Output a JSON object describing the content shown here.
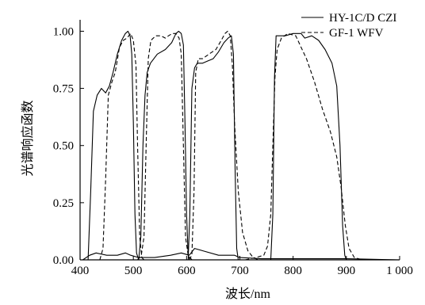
{
  "chart_data": {
    "type": "line",
    "xlabel": "波长/nm",
    "ylabel": "光谱响应函数",
    "xlim": [
      400,
      1000
    ],
    "ylim": [
      0,
      1.05
    ],
    "x_ticks": [
      400,
      500,
      600,
      700,
      800,
      900,
      1000
    ],
    "x_tick_labels": [
      "400",
      "500",
      "600",
      "700",
      "800",
      "900",
      "1 000"
    ],
    "y_ticks": [
      0,
      0.25,
      0.5,
      0.75,
      1.0
    ],
    "y_tick_labels": [
      "0.00",
      "0.25",
      "0.50",
      "0.75",
      "1.00"
    ],
    "grid": false,
    "legend_position": "top-right",
    "series": [
      {
        "name": "HY-1C/D CZI",
        "style": "solid",
        "color": "#000000",
        "bands": [
          [
            [
              405,
              0
            ],
            [
              418,
              0.02
            ],
            [
              430,
              0.03
            ],
            [
              450,
              0.02
            ],
            [
              470,
              0.02
            ],
            [
              485,
              0.03
            ],
            [
              495,
              0.02
            ],
            [
              510,
              0.01
            ],
            [
              540,
              0.01
            ],
            [
              570,
              0.02
            ],
            [
              590,
              0.03
            ],
            [
              605,
              0.02
            ],
            [
              615,
              0.05
            ],
            [
              630,
              0.04
            ],
            [
              660,
              0.02
            ],
            [
              690,
              0.02
            ],
            [
              700,
              0.01
            ],
            [
              740,
              0.005
            ],
            [
              800,
              0.005
            ],
            [
              900,
              0.005
            ],
            [
              1000,
              0
            ]
          ],
          [
            [
              415,
              0
            ],
            [
              420,
              0.3
            ],
            [
              425,
              0.65
            ],
            [
              432,
              0.72
            ],
            [
              440,
              0.75
            ],
            [
              448,
              0.73
            ],
            [
              455,
              0.76
            ],
            [
              462,
              0.82
            ],
            [
              470,
              0.9
            ],
            [
              478,
              0.96
            ],
            [
              485,
              0.99
            ],
            [
              490,
              1.0
            ],
            [
              494,
              0.98
            ],
            [
              497,
              0.9
            ],
            [
              500,
              0.6
            ],
            [
              503,
              0.2
            ],
            [
              506,
              0.03
            ],
            [
              510,
              0
            ]
          ],
          [
            [
              510,
              0
            ],
            [
              514,
              0.1
            ],
            [
              518,
              0.5
            ],
            [
              522,
              0.72
            ],
            [
              526,
              0.82
            ],
            [
              532,
              0.86
            ],
            [
              545,
              0.9
            ],
            [
              560,
              0.92
            ],
            [
              572,
              0.95
            ],
            [
              580,
              0.99
            ],
            [
              585,
              1.0
            ],
            [
              590,
              0.99
            ],
            [
              594,
              0.94
            ],
            [
              597,
              0.6
            ],
            [
              600,
              0.2
            ],
            [
              603,
              0.02
            ],
            [
              606,
              0
            ]
          ],
          [
            [
              603,
              0
            ],
            [
              606,
              0.2
            ],
            [
              610,
              0.75
            ],
            [
              615,
              0.84
            ],
            [
              620,
              0.86
            ],
            [
              630,
              0.86
            ],
            [
              640,
              0.87
            ],
            [
              650,
              0.88
            ],
            [
              660,
              0.91
            ],
            [
              670,
              0.95
            ],
            [
              678,
              0.97
            ],
            [
              684,
              0.98
            ],
            [
              688,
              0.9
            ],
            [
              691,
              0.4
            ],
            [
              694,
              0.05
            ],
            [
              697,
              0
            ]
          ],
          [
            [
              758,
              0
            ],
            [
              762,
              0.2
            ],
            [
              765,
              0.8
            ],
            [
              768,
              0.98
            ],
            [
              775,
              0.98
            ],
            [
              785,
              0.98
            ],
            [
              800,
              0.99
            ],
            [
              815,
              0.99
            ],
            [
              822,
              0.97
            ],
            [
              835,
              0.98
            ],
            [
              848,
              0.96
            ],
            [
              860,
              0.92
            ],
            [
              873,
              0.86
            ],
            [
              882,
              0.76
            ],
            [
              888,
              0.5
            ],
            [
              893,
              0.15
            ],
            [
              897,
              0.02
            ],
            [
              900,
              0
            ]
          ]
        ]
      },
      {
        "name": "GF-1 WFV",
        "style": "dashed",
        "color": "#000000",
        "bands": [
          [
            [
              437,
              0
            ],
            [
              443,
              0.05
            ],
            [
              448,
              0.35
            ],
            [
              453,
              0.72
            ],
            [
              460,
              0.78
            ],
            [
              466,
              0.82
            ],
            [
              474,
              0.93
            ],
            [
              481,
              0.96
            ],
            [
              488,
              0.97
            ],
            [
              495,
              0.99
            ],
            [
              500,
              0.96
            ],
            [
              505,
              0.85
            ],
            [
              508,
              0.5
            ],
            [
              512,
              0.1
            ],
            [
              516,
              0.01
            ],
            [
              520,
              0
            ]
          ],
          [
            [
              508,
              0
            ],
            [
              515,
              0.02
            ],
            [
              520,
              0.1
            ],
            [
              524,
              0.5
            ],
            [
              528,
              0.88
            ],
            [
              533,
              0.96
            ],
            [
              542,
              0.98
            ],
            [
              552,
              0.98
            ],
            [
              560,
              0.97
            ],
            [
              566,
              0.98
            ],
            [
              573,
              0.99
            ],
            [
              580,
              0.99
            ],
            [
              586,
              0.97
            ],
            [
              590,
              0.9
            ],
            [
              594,
              0.5
            ],
            [
              598,
              0.1
            ],
            [
              603,
              0.02
            ],
            [
              610,
              0
            ]
          ],
          [
            [
              605,
              0
            ],
            [
              610,
              0.02
            ],
            [
              614,
              0.3
            ],
            [
              617,
              0.82
            ],
            [
              622,
              0.88
            ],
            [
              630,
              0.88
            ],
            [
              642,
              0.9
            ],
            [
              655,
              0.92
            ],
            [
              665,
              0.96
            ],
            [
              672,
              0.99
            ],
            [
              677,
              1.0
            ],
            [
              682,
              0.98
            ],
            [
              686,
              0.85
            ],
            [
              690,
              0.6
            ],
            [
              697,
              0.3
            ],
            [
              705,
              0.12
            ],
            [
              715,
              0.04
            ],
            [
              725,
              0.01
            ],
            [
              735,
              0
            ]
          ],
          [
            [
              710,
              0
            ],
            [
              730,
              0.01
            ],
            [
              745,
              0.02
            ],
            [
              752,
              0.06
            ],
            [
              758,
              0.2
            ],
            [
              762,
              0.5
            ],
            [
              766,
              0.8
            ],
            [
              770,
              0.92
            ],
            [
              778,
              0.97
            ],
            [
              790,
              0.99
            ],
            [
              805,
              0.98
            ],
            [
              815,
              0.93
            ],
            [
              825,
              0.88
            ],
            [
              840,
              0.78
            ],
            [
              855,
              0.66
            ],
            [
              870,
              0.56
            ],
            [
              882,
              0.45
            ],
            [
              890,
              0.32
            ],
            [
              898,
              0.15
            ],
            [
              905,
              0.05
            ],
            [
              915,
              0.01
            ],
            [
              930,
              0
            ]
          ]
        ]
      }
    ]
  }
}
